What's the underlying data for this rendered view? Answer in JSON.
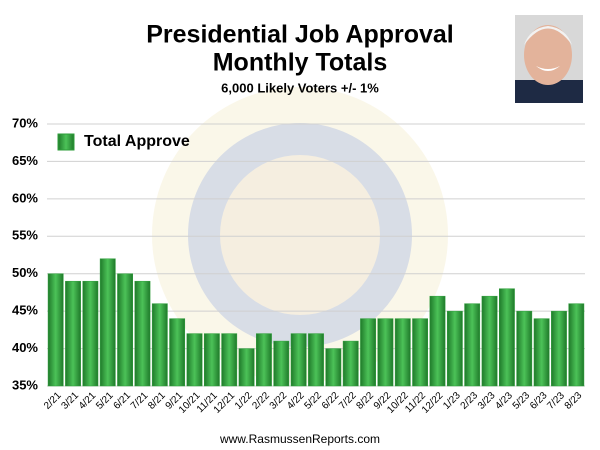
{
  "chart_data": {
    "type": "bar",
    "title": [
      "Presidential Job Approval",
      "Monthly Totals"
    ],
    "subtitle": "6,000 Likely Voters +/- 1%",
    "source": "www.RasmussenReports.com",
    "categories": [
      "2/21",
      "3/21",
      "4/21",
      "5/21",
      "6/21",
      "7/21",
      "8/21",
      "9/21",
      "10/21",
      "11/21",
      "12/21",
      "1/22",
      "2/22",
      "3/22",
      "4/22",
      "5/22",
      "6/22",
      "7/22",
      "8/22",
      "9/22",
      "10/22",
      "11/22",
      "12/22",
      "1/23",
      "2/23",
      "3/23",
      "4/23",
      "5/23",
      "6/23",
      "7/23",
      "8/23"
    ],
    "series": [
      {
        "name": "Total Approve",
        "color": "#2e9e3a",
        "values": [
          50,
          49,
          49,
          52,
          50,
          49,
          46,
          44,
          42,
          42,
          42,
          40,
          42,
          41,
          42,
          42,
          40,
          41,
          44,
          44,
          44,
          44,
          47,
          45,
          46,
          47,
          48,
          45,
          44,
          45,
          46
        ]
      }
    ],
    "ylim": [
      35,
      70
    ],
    "yticks": [
      {
        "value": 35,
        "label": "35%"
      },
      {
        "value": 40,
        "label": "40%"
      },
      {
        "value": 45,
        "label": "45%"
      },
      {
        "value": 50,
        "label": "50%"
      },
      {
        "value": 55,
        "label": "55%"
      },
      {
        "value": 60,
        "label": "60%"
      },
      {
        "value": 65,
        "label": "65%"
      },
      {
        "value": 70,
        "label": "70%"
      }
    ],
    "grid": true,
    "legend": "upper left"
  }
}
